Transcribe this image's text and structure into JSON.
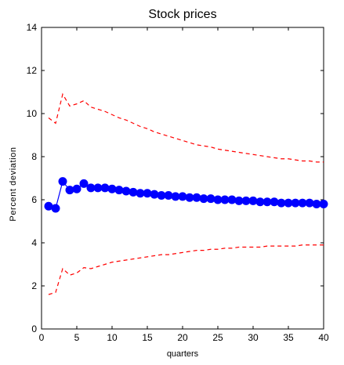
{
  "chart_data": {
    "type": "line",
    "title": "Stock prices",
    "xlabel": "quarters",
    "ylabel": "Percent deviation",
    "xlim": [
      0,
      40
    ],
    "ylim": [
      0,
      14
    ],
    "xticks": [
      0,
      5,
      10,
      15,
      20,
      25,
      30,
      35,
      40
    ],
    "yticks": [
      0,
      2,
      4,
      6,
      8,
      10,
      12,
      14
    ],
    "grid": false,
    "legend": "none",
    "series": [
      {
        "style": "solid-circles",
        "color": "#0000ff",
        "x": [
          1,
          2,
          3,
          4,
          5,
          6,
          7,
          8,
          9,
          10,
          11,
          12,
          13,
          14,
          15,
          16,
          17,
          18,
          19,
          20,
          21,
          22,
          23,
          24,
          25,
          26,
          27,
          28,
          29,
          30,
          31,
          32,
          33,
          34,
          35,
          36,
          37,
          38,
          39,
          40
        ],
        "y": [
          5.7,
          5.6,
          6.85,
          6.45,
          6.5,
          6.75,
          6.55,
          6.55,
          6.55,
          6.5,
          6.45,
          6.4,
          6.35,
          6.3,
          6.3,
          6.25,
          6.2,
          6.2,
          6.15,
          6.15,
          6.1,
          6.1,
          6.05,
          6.05,
          6.0,
          6.0,
          6.0,
          5.95,
          5.95,
          5.95,
          5.9,
          5.9,
          5.9,
          5.85,
          5.85,
          5.85,
          5.85,
          5.85,
          5.8,
          5.8
        ]
      },
      {
        "style": "dashed",
        "color": "#ff0000",
        "x": [
          1,
          2,
          3,
          4,
          5,
          6,
          7,
          8,
          9,
          10,
          11,
          12,
          13,
          14,
          15,
          16,
          17,
          18,
          19,
          20,
          21,
          22,
          23,
          24,
          25,
          26,
          27,
          28,
          29,
          30,
          31,
          32,
          33,
          34,
          35,
          36,
          37,
          38,
          39,
          40
        ],
        "y": [
          9.8,
          9.55,
          10.9,
          10.35,
          10.45,
          10.6,
          10.3,
          10.2,
          10.1,
          9.95,
          9.8,
          9.7,
          9.55,
          9.4,
          9.3,
          9.15,
          9.05,
          8.95,
          8.85,
          8.75,
          8.65,
          8.55,
          8.5,
          8.45,
          8.35,
          8.3,
          8.25,
          8.2,
          8.15,
          8.1,
          8.05,
          8.0,
          7.95,
          7.9,
          7.9,
          7.85,
          7.8,
          7.8,
          7.75,
          7.75
        ]
      },
      {
        "style": "dashed",
        "color": "#ff0000",
        "x": [
          1,
          2,
          3,
          4,
          5,
          6,
          7,
          8,
          9,
          10,
          11,
          12,
          13,
          14,
          15,
          16,
          17,
          18,
          19,
          20,
          21,
          22,
          23,
          24,
          25,
          26,
          27,
          28,
          29,
          30,
          31,
          32,
          33,
          34,
          35,
          36,
          37,
          38,
          39,
          40
        ],
        "y": [
          1.6,
          1.7,
          2.8,
          2.5,
          2.6,
          2.85,
          2.8,
          2.9,
          3.0,
          3.1,
          3.15,
          3.2,
          3.25,
          3.3,
          3.35,
          3.4,
          3.45,
          3.45,
          3.5,
          3.55,
          3.6,
          3.65,
          3.65,
          3.7,
          3.7,
          3.75,
          3.75,
          3.8,
          3.8,
          3.8,
          3.8,
          3.85,
          3.85,
          3.85,
          3.85,
          3.85,
          3.9,
          3.9,
          3.9,
          3.9
        ]
      }
    ]
  }
}
